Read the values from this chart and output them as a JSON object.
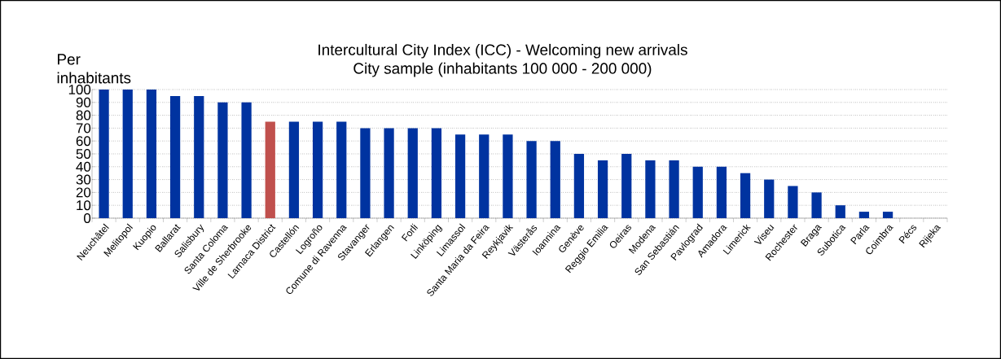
{
  "chart_data": {
    "type": "bar",
    "title": "Intercultural City Index (ICC) - Welcoming new arrivals",
    "subtitle": "City sample (inhabitants 100 000 - 200 000)",
    "ylabel": "Per inhabitants",
    "categories": [
      "Neuchâtel",
      "Melitopol",
      "Kuopio",
      "Ballarat",
      "Salisbury",
      "Santa Coloma",
      "Ville de Sherbrooke",
      "Larnaca District",
      "Castellón",
      "Logroño",
      "Comune di Ravenna",
      "Stavanger",
      "Erlangen",
      "Forli",
      "Linköping",
      "Limassol",
      "Santa Maria da Feira",
      "Reykjavik",
      "Västerås",
      "Ioannina",
      "Genève",
      "Reggio Emilia",
      "Oeiras",
      "Modena",
      "San Sebastián",
      "Pavlograd",
      "Amadora",
      "Limerick",
      "Viseu",
      "Rochester",
      "Braga",
      "Subotica",
      "Parla",
      "Coimbra",
      "Pécs",
      "Rijeka"
    ],
    "values": [
      100,
      100,
      100,
      95,
      95,
      90,
      90,
      75,
      75,
      75,
      75,
      70,
      70,
      70,
      70,
      65,
      65,
      65,
      60,
      60,
      50,
      45,
      50,
      45,
      45,
      40,
      40,
      35,
      30,
      25,
      20,
      10,
      5,
      5,
      0,
      0
    ],
    "colors": [
      "#0033a0",
      "#0033a0",
      "#0033a0",
      "#0033a0",
      "#0033a0",
      "#0033a0",
      "#0033a0",
      "#c0504d",
      "#0033a0",
      "#0033a0",
      "#0033a0",
      "#0033a0",
      "#0033a0",
      "#0033a0",
      "#0033a0",
      "#0033a0",
      "#0033a0",
      "#0033a0",
      "#0033a0",
      "#0033a0",
      "#0033a0",
      "#0033a0",
      "#0033a0",
      "#0033a0",
      "#0033a0",
      "#0033a0",
      "#0033a0",
      "#0033a0",
      "#0033a0",
      "#0033a0",
      "#0033a0",
      "#0033a0",
      "#0033a0",
      "#0033a0",
      "#0033a0",
      "#0033a0"
    ],
    "ylim": [
      0,
      100
    ],
    "yticks": [
      0,
      10,
      20,
      30,
      40,
      50,
      60,
      70,
      80,
      90,
      100
    ],
    "grid": "y"
  }
}
